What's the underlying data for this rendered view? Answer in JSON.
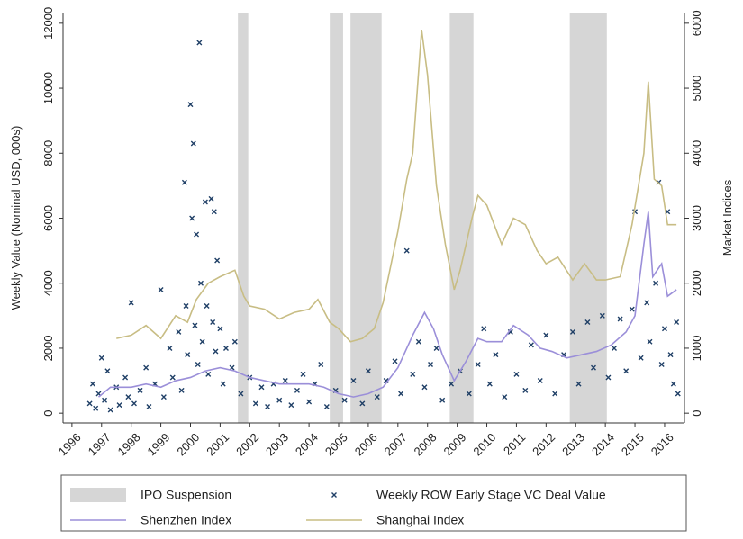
{
  "chart_data": {
    "type": "dual_axis_line_scatter",
    "y_label": "Weekly Value (Nominal USD, 000s)",
    "y2_label": "Market Indices",
    "xlim": [
      1995.7,
      2016.67
    ],
    "xticks": [
      1996,
      1997,
      1998,
      1999,
      2000,
      2001,
      2002,
      2003,
      2004,
      2005,
      2006,
      2007,
      2008,
      2009,
      2010,
      2011,
      2012,
      2013,
      2014,
      2015,
      2016
    ],
    "ylim": [
      -300,
      12300
    ],
    "yticks": [
      0,
      2000,
      4000,
      6000,
      8000,
      10000,
      12000
    ],
    "y2lim": [
      -150,
      6150
    ],
    "y2ticks": [
      0,
      1000,
      2000,
      3000,
      4000,
      5000,
      6000
    ],
    "series": [
      {
        "name": "IPO Suspension",
        "type": "span",
        "color": "#d6d6d6",
        "spans": [
          [
            2001.6,
            2001.95
          ],
          [
            2004.7,
            2005.15
          ],
          [
            2005.4,
            2006.45
          ],
          [
            2008.75,
            2009.55
          ],
          [
            2012.8,
            2014.05
          ]
        ]
      },
      {
        "name": "Weekly ROW Early Stage VC Deal Value",
        "type": "scatter",
        "color": "#1f3f66",
        "x": [
          1996.6,
          1996.7,
          1996.8,
          1996.9,
          1997.0,
          1997.1,
          1997.2,
          1997.3,
          1997.5,
          1997.6,
          1997.8,
          1997.9,
          1998.0,
          1998.1,
          1998.3,
          1998.5,
          1998.6,
          1998.8,
          1999.0,
          1999.1,
          1999.3,
          1999.4,
          1999.6,
          1999.7,
          1999.8,
          1999.85,
          1999.9,
          2000.0,
          2000.05,
          2000.1,
          2000.15,
          2000.2,
          2000.25,
          2000.3,
          2000.35,
          2000.4,
          2000.5,
          2000.55,
          2000.6,
          2000.7,
          2000.75,
          2000.8,
          2000.85,
          2000.9,
          2001.0,
          2001.1,
          2001.2,
          2001.4,
          2001.5,
          2001.7,
          2002.0,
          2002.2,
          2002.4,
          2002.6,
          2002.8,
          2003.0,
          2003.2,
          2003.4,
          2003.6,
          2003.8,
          2004.0,
          2004.2,
          2004.4,
          2004.6,
          2004.9,
          2005.2,
          2005.5,
          2005.8,
          2006.0,
          2006.3,
          2006.6,
          2006.9,
          2007.1,
          2007.3,
          2007.5,
          2007.7,
          2007.9,
          2008.1,
          2008.3,
          2008.5,
          2008.8,
          2009.1,
          2009.4,
          2009.7,
          2009.9,
          2010.1,
          2010.3,
          2010.6,
          2010.8,
          2011.0,
          2011.3,
          2011.5,
          2011.8,
          2012.0,
          2012.3,
          2012.6,
          2012.9,
          2013.1,
          2013.4,
          2013.6,
          2013.9,
          2014.1,
          2014.3,
          2014.5,
          2014.7,
          2014.9,
          2015.0,
          2015.2,
          2015.4,
          2015.5,
          2015.7,
          2015.8,
          2015.9,
          2016.0,
          2016.1,
          2016.2,
          2016.3,
          2016.4,
          2016.45
        ],
        "values": [
          300,
          900,
          150,
          600,
          1700,
          400,
          1300,
          100,
          800,
          250,
          1100,
          500,
          3400,
          300,
          700,
          1400,
          200,
          900,
          3800,
          500,
          2000,
          1100,
          2500,
          700,
          7100,
          3300,
          1800,
          9500,
          6000,
          8300,
          2700,
          5500,
          1500,
          11400,
          4000,
          2200,
          6500,
          3300,
          1200,
          6600,
          2800,
          6200,
          1900,
          4700,
          2600,
          900,
          2000,
          1400,
          2200,
          600,
          1100,
          300,
          800,
          200,
          900,
          400,
          1000,
          250,
          700,
          1200,
          350,
          900,
          1500,
          200,
          700,
          400,
          1000,
          300,
          1300,
          500,
          1000,
          1600,
          600,
          5000,
          1200,
          2200,
          800,
          1500,
          2000,
          400,
          900,
          1300,
          600,
          1500,
          2600,
          900,
          1800,
          500,
          2500,
          1200,
          700,
          2100,
          1000,
          2400,
          600,
          1800,
          2500,
          900,
          2800,
          1400,
          3000,
          1100,
          2000,
          2900,
          1300,
          3200,
          6200,
          1700,
          3400,
          2200,
          4000,
          7100,
          1500,
          2600,
          6200,
          1800,
          900,
          2800,
          600
        ]
      },
      {
        "name": "Shenzhen Index",
        "type": "line",
        "axis": "y2",
        "color": "#9b8fd9",
        "x": [
          1996.9,
          1997.3,
          1998.0,
          1998.5,
          1999.0,
          1999.5,
          2000.0,
          2000.5,
          2001.0,
          2001.5,
          2002.0,
          2002.5,
          2003.0,
          2003.5,
          2004.0,
          2004.5,
          2005.0,
          2005.5,
          2006.0,
          2006.5,
          2007.0,
          2007.5,
          2007.9,
          2008.2,
          2008.5,
          2008.9,
          2009.3,
          2009.7,
          2010.0,
          2010.5,
          2010.9,
          2011.4,
          2011.8,
          2012.2,
          2012.7,
          2013.2,
          2013.7,
          2014.2,
          2014.7,
          2015.0,
          2015.3,
          2015.45,
          2015.6,
          2015.9,
          2016.1,
          2016.4
        ],
        "values": [
          250,
          400,
          400,
          450,
          400,
          500,
          550,
          650,
          700,
          650,
          550,
          500,
          450,
          450,
          450,
          400,
          300,
          250,
          300,
          400,
          700,
          1200,
          1550,
          1300,
          900,
          500,
          800,
          1150,
          1100,
          1100,
          1350,
          1200,
          1000,
          950,
          850,
          900,
          950,
          1050,
          1250,
          1500,
          2600,
          3100,
          2100,
          2300,
          1800,
          1900
        ]
      },
      {
        "name": "Shanghai Index",
        "type": "line",
        "axis": "y2",
        "color": "#c8bd84",
        "x": [
          1997.5,
          1998.0,
          1998.5,
          1999.0,
          1999.5,
          1999.9,
          2000.2,
          2000.6,
          2001.0,
          2001.5,
          2001.8,
          2002.0,
          2002.5,
          2003.0,
          2003.5,
          2004.0,
          2004.3,
          2004.7,
          2005.0,
          2005.4,
          2005.8,
          2006.2,
          2006.5,
          2007.0,
          2007.3,
          2007.5,
          2007.8,
          2008.0,
          2008.3,
          2008.6,
          2008.9,
          2009.1,
          2009.5,
          2009.7,
          2010.0,
          2010.5,
          2010.9,
          2011.3,
          2011.7,
          2012.0,
          2012.4,
          2012.9,
          2013.3,
          2013.7,
          2014.0,
          2014.5,
          2014.9,
          2015.3,
          2015.45,
          2015.65,
          2015.9,
          2016.1,
          2016.4
        ],
        "values": [
          1150,
          1200,
          1350,
          1150,
          1500,
          1400,
          1750,
          2000,
          2100,
          2200,
          1800,
          1650,
          1600,
          1450,
          1550,
          1600,
          1750,
          1400,
          1300,
          1100,
          1150,
          1300,
          1700,
          2800,
          3600,
          4000,
          5900,
          5200,
          3500,
          2600,
          1900,
          2200,
          3000,
          3350,
          3200,
          2600,
          3000,
          2900,
          2500,
          2300,
          2400,
          2050,
          2300,
          2050,
          2050,
          2100,
          2900,
          4000,
          5100,
          3600,
          3500,
          2900,
          2900
        ]
      }
    ]
  }
}
